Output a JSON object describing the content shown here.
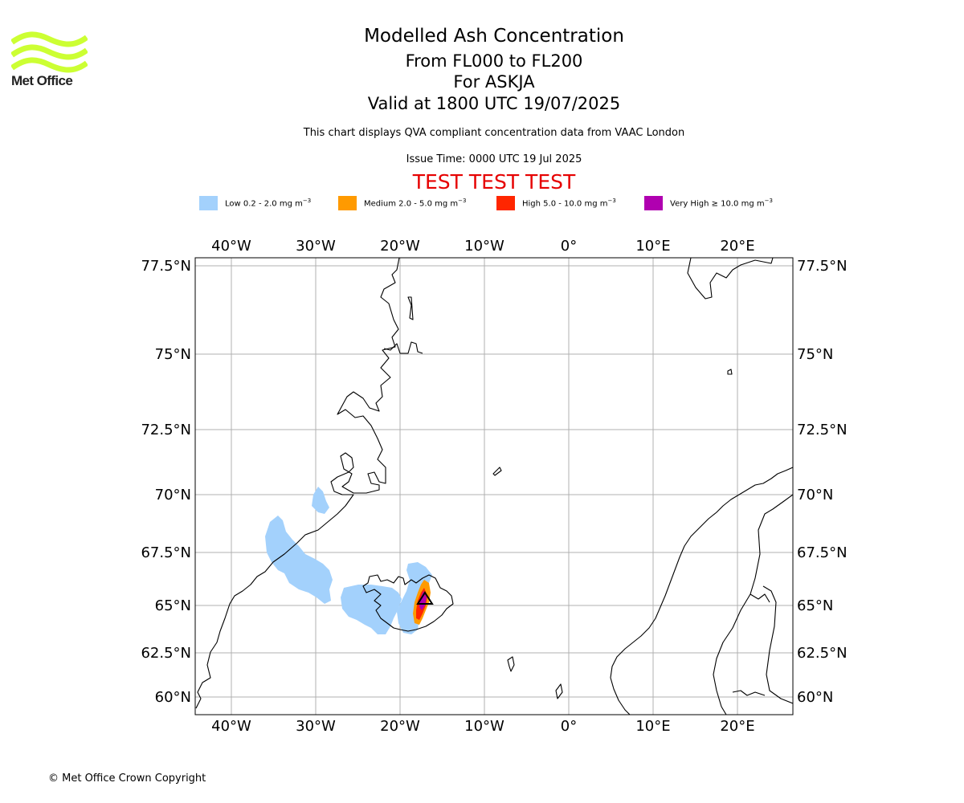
{
  "header": {
    "title_line1": "Modelled Ash Concentration",
    "title_line2": "From FL000 to FL200",
    "title_line3": "For ASKJA",
    "title_line4": "Valid at 1800 UTC 19/07/2025",
    "subtitle": "This chart displays QVA compliant concentration data from VAAC London",
    "issue_time": "Issue Time: 0000 UTC 19 Jul 2025",
    "test_banner": "TEST TEST TEST",
    "test_color": "#e60000"
  },
  "logo": {
    "text": "Met Office",
    "icon": "met-office-waves-logo",
    "color": "#ccff33"
  },
  "legend": [
    {
      "label": "Low 0.2 - 2.0 mg m",
      "unit_exp": "−3",
      "color": "#a3d1fc"
    },
    {
      "label": "Medium 2.0 - 5.0 mg m",
      "unit_exp": "−3",
      "color": "#ff9a00"
    },
    {
      "label": "High 5.0 - 10.0 mg m",
      "unit_exp": "−3",
      "color": "#ff2600"
    },
    {
      "label": "Very High  ≥  10.0 mg m",
      "unit_exp": "−3",
      "color": "#b000b0"
    }
  ],
  "map": {
    "x_ticks": [
      "40°W",
      "30°W",
      "20°W",
      "10°W",
      "0°",
      "10°E",
      "20°E"
    ],
    "y_ticks": [
      "77.5°N",
      "75°N",
      "72.5°N",
      "70°N",
      "67.5°N",
      "65°N",
      "62.5°N",
      "60°N"
    ],
    "lon_range": [
      -44.3,
      26.5
    ],
    "lat_range": [
      59.4,
      77.7
    ],
    "volcano": {
      "name_icon": "volcano-triangle-icon",
      "lon": -16.75,
      "lat": 65.03
    },
    "grid": true
  },
  "footer": {
    "copyright": "© Met Office Crown Copyright"
  }
}
